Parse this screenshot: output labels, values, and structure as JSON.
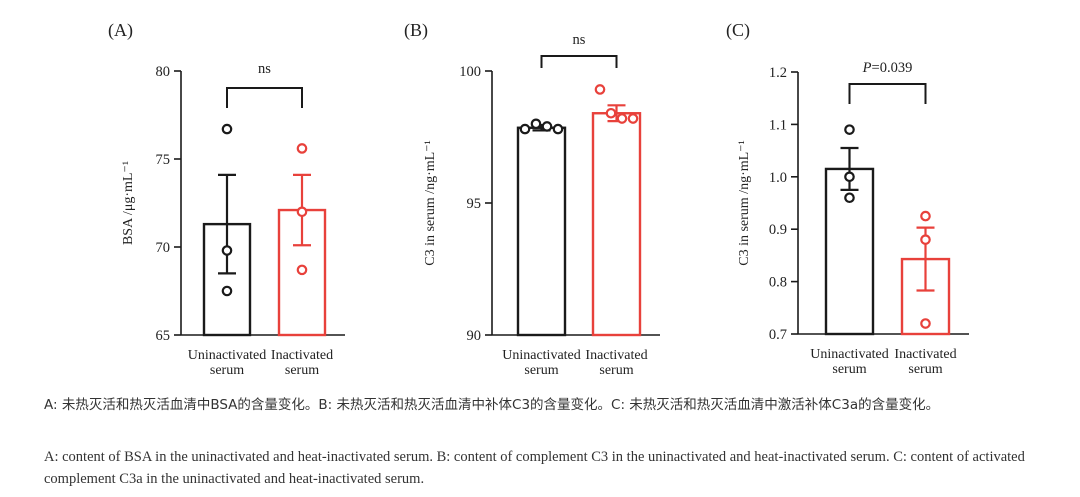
{
  "colors": {
    "control": "#1a1a1a",
    "treated": "#e8413b",
    "text": "#222222",
    "caption": "#333333"
  },
  "chart_data": [
    {
      "type": "bar",
      "panel_label": "(A)",
      "ylabel": "BSA /μg·mL⁻¹",
      "ylim": [
        65,
        80
      ],
      "yticks": [
        65,
        70,
        75,
        80
      ],
      "categories": [
        [
          "Uninactivated",
          "serum"
        ],
        [
          "Inactivated",
          "serum"
        ]
      ],
      "values": [
        71.3,
        72.1
      ],
      "errors": [
        2.8,
        2.0
      ],
      "points": [
        [
          76.7,
          69.8,
          67.5
        ],
        [
          75.6,
          72.0,
          68.7
        ]
      ],
      "significance": "ns"
    },
    {
      "type": "bar",
      "panel_label": "(B)",
      "ylabel": "C3 in serum /ng·mL⁻¹",
      "ylim": [
        90,
        100
      ],
      "yticks": [
        90,
        95,
        100
      ],
      "categories": [
        [
          "Uninactivated",
          "serum"
        ],
        [
          "Inactivated",
          "serum"
        ]
      ],
      "values": [
        97.85,
        98.4
      ],
      "errors": [
        0.1,
        0.3
      ],
      "points": [
        [
          97.8,
          98.0,
          97.9,
          97.8
        ],
        [
          99.3,
          98.4,
          98.2,
          98.2
        ]
      ],
      "significance": "ns"
    },
    {
      "type": "bar",
      "panel_label": "(C)",
      "ylabel": "C3 in serum /ng·mL⁻¹",
      "ylim": [
        0.7,
        1.2
      ],
      "yticks": [
        0.7,
        0.8,
        0.9,
        1.0,
        1.1,
        1.2
      ],
      "ytick_labels": [
        "0.7",
        "0.8",
        "0.9",
        "1.0",
        "1.1",
        "1.2"
      ],
      "categories": [
        [
          "Uninactivated",
          "serum"
        ],
        [
          "Inactivated",
          "serum"
        ]
      ],
      "values": [
        1.015,
        0.843
      ],
      "errors": [
        0.04,
        0.06
      ],
      "points": [
        [
          1.09,
          1.0,
          0.96
        ],
        [
          0.925,
          0.88,
          0.72
        ]
      ],
      "significance": "P=0.039",
      "significance_parts": [
        "P",
        "=0.039"
      ]
    }
  ],
  "caption": {
    "zh": "A: 未热灭活和热灭活血清中BSA的含量变化。B: 未热灭活和热灭活血清中补体C3的含量变化。C: 未热灭活和热灭活血清中激活补体C3a的含量变化。",
    "en": "A: content of BSA in the uninactivated and heat-inactivated serum. B: content of complement C3 in the uninactivated and heat-inactivated serum. C: content of activated complement C3a in the uninactivated and heat-inactivated serum."
  }
}
